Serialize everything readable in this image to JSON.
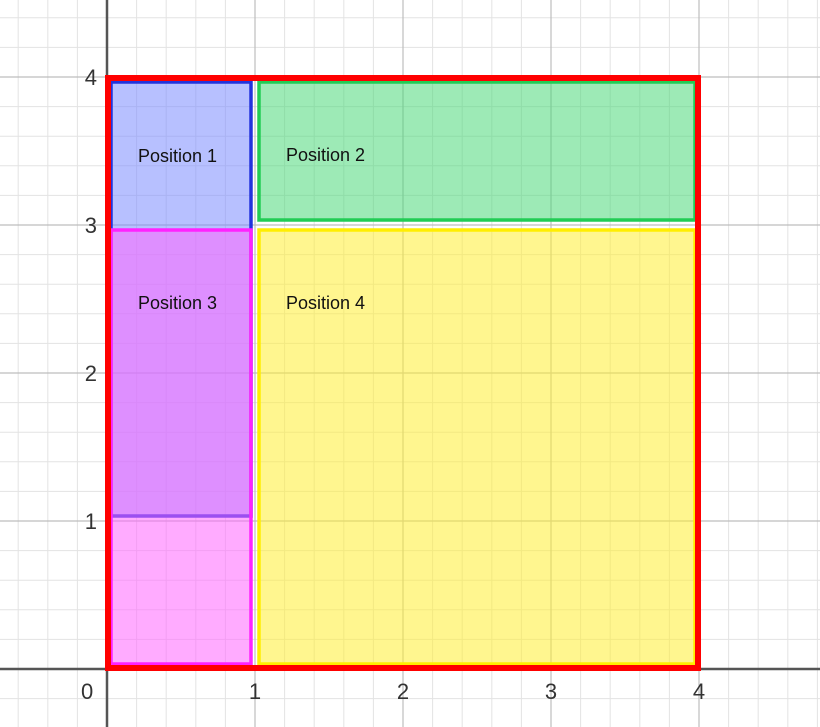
{
  "axes": {
    "x_ticks": [
      "0",
      "1",
      "2",
      "3",
      "4"
    ],
    "y_ticks": [
      "1",
      "2",
      "3",
      "4"
    ]
  },
  "regions": [
    {
      "label": "Position 1",
      "x": [
        0,
        1
      ],
      "y": [
        1,
        4
      ],
      "fill": "#7b8cff",
      "stroke": "#2233dd"
    },
    {
      "label": "Position 2",
      "x": [
        1,
        4
      ],
      "y": [
        3,
        4
      ],
      "fill": "#4cd97a",
      "stroke": "#22cc55"
    },
    {
      "label": "Position 3",
      "x": [
        0,
        1
      ],
      "y": [
        0,
        3
      ],
      "fill": "#ff66ff",
      "stroke": "#ff22ff"
    },
    {
      "label": "Position 4",
      "x": [
        1,
        4
      ],
      "y": [
        0,
        3
      ],
      "fill": "#ffee33",
      "stroke": "#ffee00"
    }
  ],
  "outer_boundary": {
    "x": [
      0,
      4
    ],
    "y": [
      0,
      4
    ],
    "stroke": "#ff0000"
  }
}
